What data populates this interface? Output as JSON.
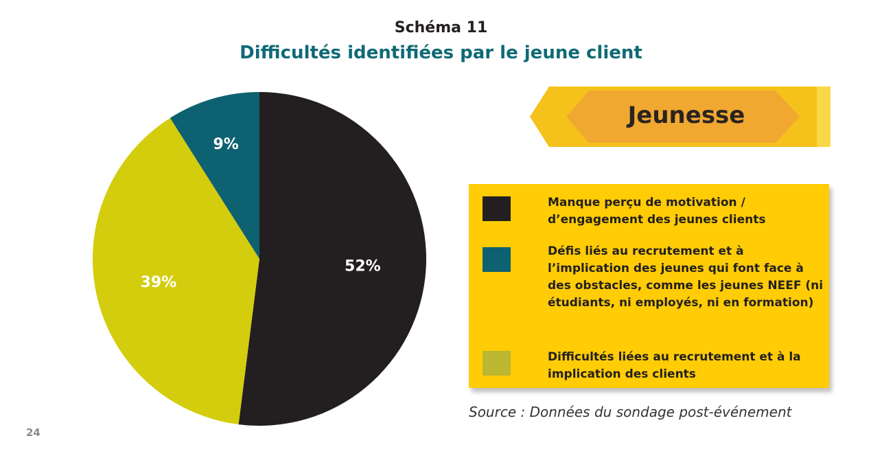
{
  "header": {
    "schema_label": "Schéma 11",
    "title": "Difficultés identifiées par le jeune client"
  },
  "banner": {
    "label": "Jeunesse"
  },
  "chart_data": {
    "type": "pie",
    "title": "Difficultés identifiées par le jeune client",
    "slices": [
      {
        "name": "Manque perçu de motivation / d’engagement des jeunes clients",
        "value": 52,
        "label": "52%",
        "color": "#231f20"
      },
      {
        "name": "Difficultés liées au recrutement et à la implication des clients",
        "value": 39,
        "label": "39%",
        "color": "#d4cd0d"
      },
      {
        "name": "Défis liés au recrutement et à l’implication des jeunes qui font face à des obstacles, comme les jeunes NEEF (ni étudiants, ni employés, ni en formation)",
        "value": 9,
        "label": "9%",
        "color": "#0e6170"
      }
    ]
  },
  "legend": {
    "items": [
      {
        "text": "Manque perçu de motivation / d’engagement des jeunes clients",
        "color": "#231f20"
      },
      {
        "text": "Défis liés au recrutement et à l’implication des jeunes qui font face à des obstacles, comme les jeunes NEEF (ni étudiants, ni employés, ni en formation)",
        "color": "#0e6170"
      },
      {
        "text": "Difficultés liées au recrutement et à la implication des clients",
        "color": "#bcb631"
      }
    ]
  },
  "source": "Source : Données du sondage post-événement",
  "page_number": "24"
}
